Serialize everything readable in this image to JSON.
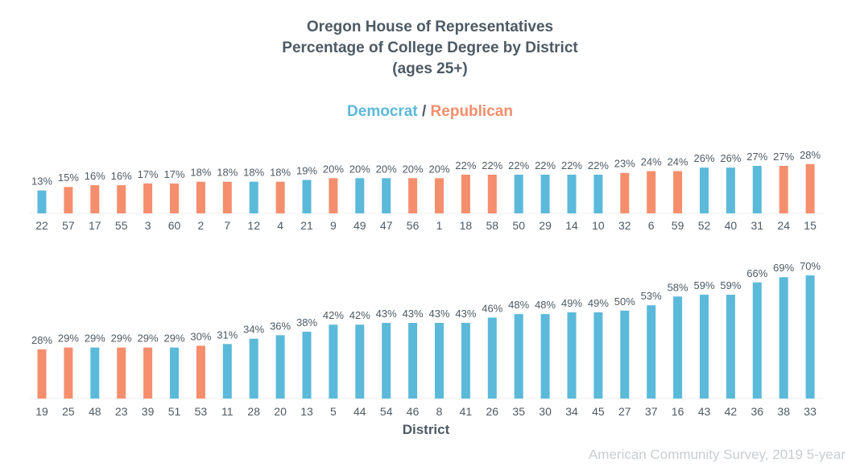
{
  "title_lines": [
    "Oregon House of Representatives",
    "Percentage of College Degree by District",
    "(ages 25+)"
  ],
  "legend": {
    "democrat_label": "Democrat",
    "separator": " / ",
    "republican_label": "Republican",
    "democrat_color": "#5bb9da",
    "republican_color": "#f58e6c"
  },
  "source": "American Community Survey, 2019 5-year",
  "chart_data": [
    {
      "type": "bar",
      "xlabel": "",
      "ylim": [
        0,
        70
      ],
      "categories": [
        "22",
        "57",
        "17",
        "55",
        "3",
        "60",
        "2",
        "7",
        "12",
        "4",
        "21",
        "9",
        "49",
        "47",
        "56",
        "1",
        "18",
        "58",
        "50",
        "29",
        "14",
        "10",
        "32",
        "6",
        "59",
        "52",
        "40",
        "31",
        "24",
        "15"
      ],
      "values": [
        13,
        15,
        16,
        16,
        17,
        17,
        18,
        18,
        18,
        18,
        19,
        20,
        20,
        20,
        20,
        20,
        22,
        22,
        22,
        22,
        22,
        22,
        23,
        24,
        24,
        26,
        26,
        27,
        27,
        28
      ],
      "labels": [
        "13%",
        "15%",
        "16%",
        "16%",
        "17%",
        "17%",
        "18%",
        "18%",
        "18%",
        "18%",
        "19%",
        "20%",
        "20%",
        "20%",
        "20%",
        "20%",
        "22%",
        "22%",
        "22%",
        "22%",
        "22%",
        "22%",
        "23%",
        "24%",
        "24%",
        "26%",
        "26%",
        "27%",
        "27%",
        "28%"
      ],
      "party": [
        "D",
        "R",
        "R",
        "R",
        "R",
        "R",
        "R",
        "R",
        "D",
        "R",
        "D",
        "R",
        "D",
        "D",
        "R",
        "R",
        "R",
        "R",
        "D",
        "D",
        "D",
        "D",
        "R",
        "R",
        "R",
        "D",
        "D",
        "D",
        "R",
        "R"
      ]
    },
    {
      "type": "bar",
      "xlabel": "District",
      "ylim": [
        0,
        70
      ],
      "categories": [
        "19",
        "25",
        "48",
        "23",
        "39",
        "51",
        "53",
        "11",
        "28",
        "20",
        "13",
        "5",
        "44",
        "54",
        "46",
        "8",
        "41",
        "26",
        "35",
        "30",
        "34",
        "45",
        "27",
        "37",
        "16",
        "43",
        "42",
        "36",
        "38",
        "33"
      ],
      "values": [
        28,
        29,
        29,
        29,
        29,
        29,
        30,
        31,
        34,
        36,
        38,
        42,
        42,
        43,
        43,
        43,
        43,
        46,
        48,
        48,
        49,
        49,
        50,
        53,
        58,
        59,
        59,
        66,
        69,
        70
      ],
      "labels": [
        "28%",
        "29%",
        "29%",
        "29%",
        "29%",
        "29%",
        "30%",
        "31%",
        "34%",
        "36%",
        "38%",
        "42%",
        "42%",
        "43%",
        "43%",
        "43%",
        "43%",
        "46%",
        "48%",
        "48%",
        "49%",
        "49%",
        "50%",
        "53%",
        "58%",
        "59%",
        "59%",
        "66%",
        "69%",
        "70%"
      ],
      "party": [
        "R",
        "R",
        "D",
        "R",
        "R",
        "D",
        "R",
        "D",
        "D",
        "D",
        "D",
        "D",
        "D",
        "D",
        "D",
        "D",
        "D",
        "D",
        "D",
        "D",
        "D",
        "D",
        "D",
        "D",
        "D",
        "D",
        "D",
        "D",
        "D",
        "D"
      ]
    }
  ]
}
